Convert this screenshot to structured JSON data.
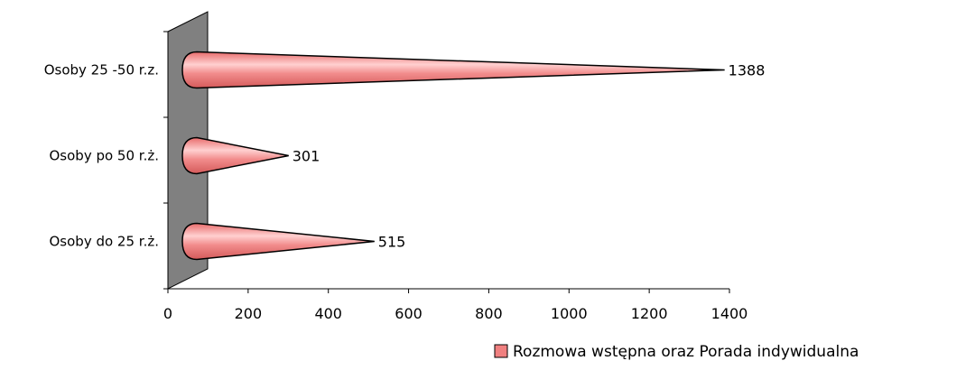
{
  "chart_data": {
    "type": "bar",
    "orientation": "horizontal",
    "shape": "cone",
    "categories": [
      "Osoby do 25 r.ż.",
      "Osoby po 50 r.ż.",
      "Osoby 25 -50 r.z."
    ],
    "series": [
      {
        "name": "Rozmowa wstępna oraz Porada indywidualna",
        "values": [
          515,
          301,
          1388
        ],
        "color": "#F08080"
      }
    ],
    "data_labels": [
      "515",
      "301",
      "1388"
    ],
    "xlim": [
      0,
      1400
    ],
    "x_ticks": [
      "0",
      "200",
      "400",
      "600",
      "800",
      "1000",
      "1200",
      "1400"
    ],
    "grid": false,
    "legend_position": "bottom-right",
    "title": "",
    "xlabel": "",
    "ylabel": "",
    "colors": {
      "bar_fill": "#F08080",
      "bar_highlight": "#FFD0D0",
      "wall_fill": "#808080",
      "axis": "#000000"
    }
  }
}
